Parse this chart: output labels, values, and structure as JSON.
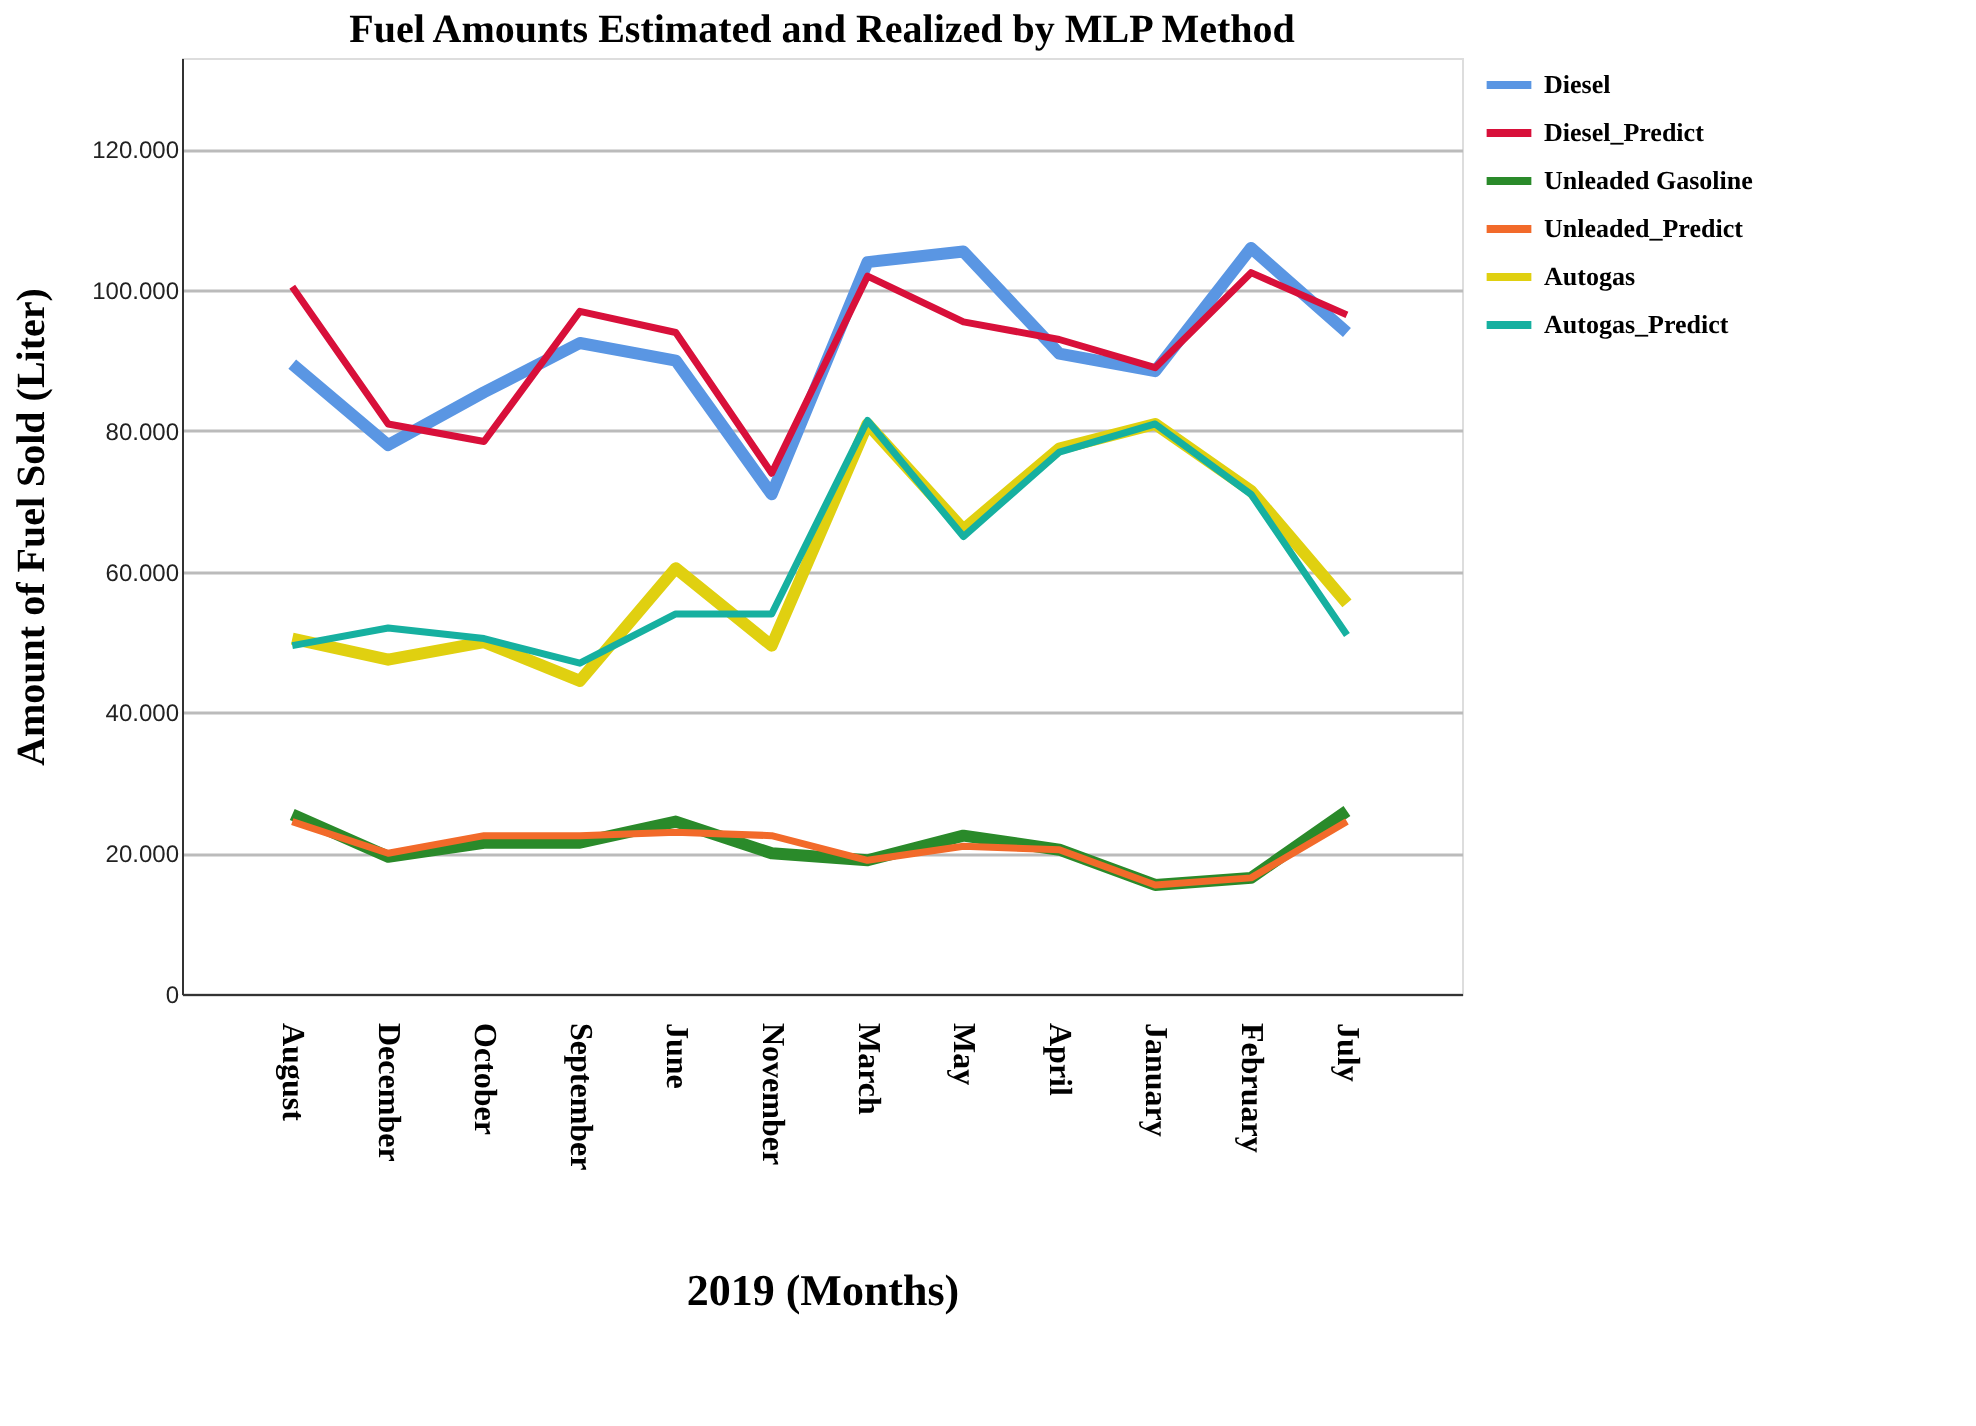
{
  "chart_data": {
    "type": "line",
    "title": "Fuel Amounts Estimated and Realized by MLP Method",
    "xlabel": "2019 (Months)",
    "ylabel": "Amount of Fuel Sold (Liter)",
    "categories": [
      "August",
      "December",
      "October",
      "September",
      "June",
      "November",
      "March",
      "May",
      "April",
      "January",
      "February",
      "July"
    ],
    "series": [
      {
        "name": "Diesel",
        "color": "#5a96e3",
        "values": [
          89500,
          78000,
          85500,
          92500,
          90000,
          71000,
          104000,
          105500,
          91000,
          88500,
          106000,
          94000
        ]
      },
      {
        "name": "Diesel_Predict",
        "color": "#d8103a",
        "values": [
          100500,
          81000,
          78500,
          97000,
          94000,
          74000,
          102000,
          95500,
          93000,
          89000,
          102500,
          96500
        ]
      },
      {
        "name": "Unleaded Gasoline",
        "color": "#2a8a2a",
        "values": [
          25500,
          19500,
          21500,
          21500,
          24500,
          20000,
          19000,
          22500,
          20500,
          15500,
          16500,
          26000
        ]
      },
      {
        "name": "Unleaded_Predict",
        "color": "#f26a2a",
        "values": [
          24500,
          20000,
          22500,
          22500,
          23000,
          22500,
          19000,
          21000,
          20500,
          15500,
          16500,
          24500
        ]
      },
      {
        "name": "Autogas",
        "color": "#e0d010",
        "values": [
          50500,
          47500,
          50000,
          44500,
          60500,
          49500,
          81000,
          66000,
          77500,
          81000,
          71500,
          55500
        ]
      },
      {
        "name": "Autogas_Predict",
        "color": "#16b0a0",
        "values": [
          49500,
          52000,
          50500,
          47000,
          54000,
          54000,
          81500,
          65000,
          77000,
          81000,
          71000,
          51000
        ]
      }
    ],
    "ylim": [
      0,
      133000
    ],
    "yticks": [
      0,
      {
        "value": 20000,
        "label": "20.000"
      },
      {
        "value": 40000,
        "label": "40.000"
      },
      {
        "value": 60000,
        "label": "60.000"
      },
      {
        "value": 80000,
        "label": "80.000"
      },
      {
        "value": 100000,
        "label": "100.000"
      },
      {
        "value": 120000,
        "label": "120.000"
      }
    ],
    "grid": "y",
    "legend": "top right",
    "marker": "none",
    "line_style": "solid"
  }
}
